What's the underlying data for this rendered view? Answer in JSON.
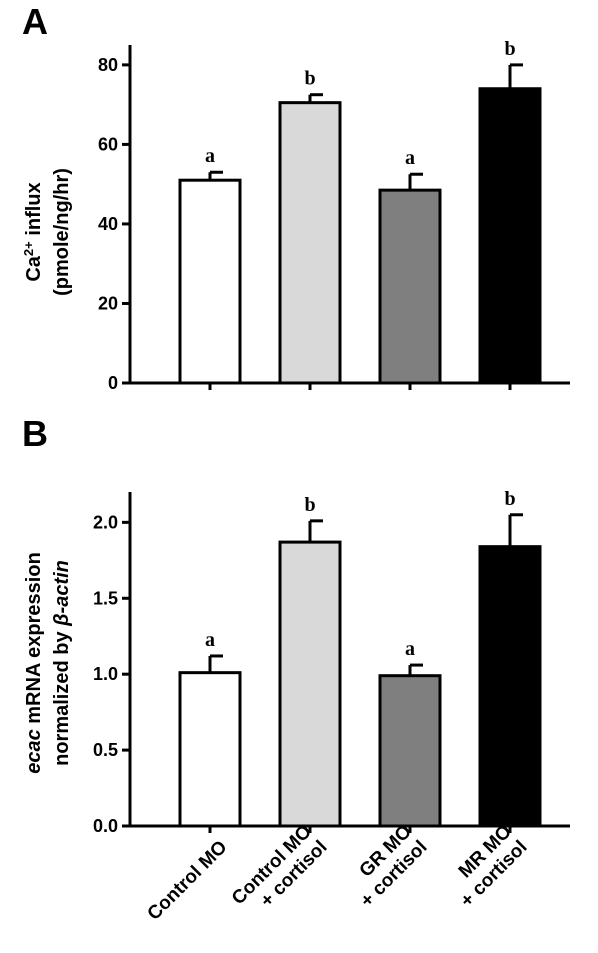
{
  "chart_data": [
    {
      "type": "bar",
      "panel": "A",
      "ylabel_line1": "Ca",
      "ylabel_sup": "2+",
      "ylabel_line1_rest": " influx",
      "ylabel_line2": "(pmole/ng/hr)",
      "ylim": [
        0,
        85
      ],
      "yticks": [
        "0",
        "20",
        "40",
        "60",
        "80"
      ],
      "ytick_values": [
        0,
        20,
        40,
        60,
        80
      ],
      "categories": [
        "Control MO",
        "Control MO + cortisol",
        "GR MO + cortisol",
        "MR MO + cortisol"
      ],
      "values": [
        51,
        70.5,
        48.5,
        74
      ],
      "errors": [
        2,
        2,
        4,
        6
      ],
      "significance": [
        "a",
        "b",
        "a",
        "b"
      ],
      "colors": [
        "#ffffff",
        "#d9d9d9",
        "#7f7f7f",
        "#000000"
      ],
      "grid": false
    },
    {
      "type": "bar",
      "panel": "B",
      "ylabel_line1_italic": "ecac",
      "ylabel_line1_rest": " mRNA expression",
      "ylabel_line2_plain": "normalized by ",
      "ylabel_line2_italic": "β-actin",
      "ylim": [
        0,
        2.2
      ],
      "yticks": [
        "0.0",
        "0.5",
        "1.0",
        "1.5",
        "2.0"
      ],
      "ytick_values": [
        0,
        0.5,
        1.0,
        1.5,
        2.0
      ],
      "categories": [
        "Control MO",
        "Control MO + cortisol",
        "GR MO + cortisol",
        "MR MO + cortisol"
      ],
      "values": [
        1.01,
        1.87,
        0.99,
        1.84
      ],
      "errors": [
        0.11,
        0.14,
        0.07,
        0.21
      ],
      "significance": [
        "a",
        "b",
        "a",
        "b"
      ],
      "colors": [
        "#ffffff",
        "#d9d9d9",
        "#7f7f7f",
        "#000000"
      ],
      "grid": false
    }
  ],
  "xaxis": {
    "labels": [
      [
        "Control MO"
      ],
      [
        "Control MO",
        "+ cortisol"
      ],
      [
        "GR MO",
        "+ cortisol"
      ],
      [
        "MR MO",
        "+ cortisol"
      ]
    ]
  }
}
